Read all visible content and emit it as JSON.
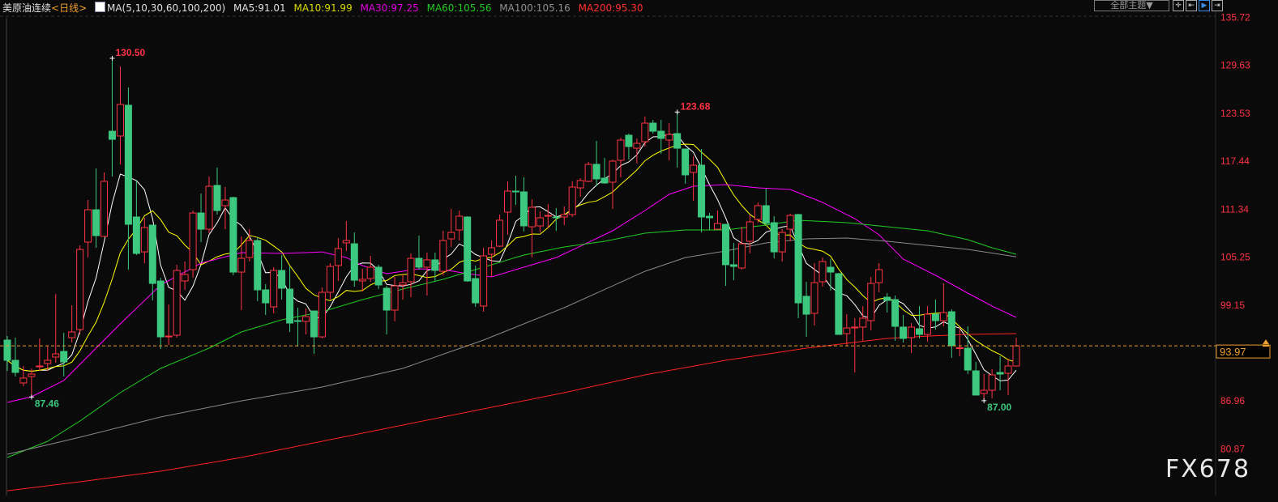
{
  "header": {
    "title": "美原油连续",
    "period": "<日线>",
    "indicator": "MA(5,10,30,60,100,200)",
    "ma5": "MA5:91.01",
    "ma10": "MA10:91.99",
    "ma30": "MA30:97.25",
    "ma60": "MA60:105.56",
    "ma100": "MA100:105.16",
    "ma200": "MA200:95.30"
  },
  "toolbar": {
    "theme": "全部主题▼",
    "icons": [
      "crosshair-icon",
      "range-icon",
      "play-icon",
      "move-right-icon"
    ]
  },
  "watermark": "FX678",
  "colors": {
    "up": "#ff3344",
    "down": "#3cc87e",
    "ma5": "#ffffff",
    "ma10": "#ffff00",
    "ma30": "#ff00ff",
    "ma60": "#22cc22",
    "ma100": "#8a8a8a",
    "ma200": "#ff2222",
    "last": "#f0a030"
  },
  "chart_data": {
    "type": "candlestick",
    "title": "美原油连续 <日线>",
    "ylim": [
      74.6,
      137.9
    ],
    "y_ticks": [
      "135.72",
      "129.63",
      "123.53",
      "117.44",
      "111.34",
      "105.25",
      "99.15",
      "86.96",
      "80.87"
    ],
    "last_price": "93.97",
    "annotations": [
      {
        "label": "130.50",
        "index": 14,
        "price": 130.5,
        "kind": "high"
      },
      {
        "label": "87.46",
        "index": 4,
        "price": 87.46,
        "kind": "low"
      },
      {
        "label": "123.68",
        "index": 84,
        "price": 123.68,
        "kind": "high"
      },
      {
        "label": "87.00",
        "index": 122,
        "price": 87.0,
        "kind": "low"
      }
    ],
    "ohlc_fields": [
      "open",
      "high",
      "low",
      "close"
    ],
    "candles": [
      [
        94.7,
        95.21,
        90.79,
        92.13
      ],
      [
        92.13,
        95.01,
        90.07,
        90.59
      ],
      [
        89.25,
        91.41,
        88.84,
        89.87
      ],
      [
        90.07,
        91.1,
        87.46,
        90.38
      ],
      [
        91.31,
        94.91,
        90.79,
        91.41
      ],
      [
        91.72,
        93.98,
        90.79,
        92.13
      ],
      [
        92.54,
        100.56,
        91.82,
        92.95
      ],
      [
        93.26,
        95.63,
        90.07,
        91.92
      ],
      [
        95.01,
        99.12,
        94.39,
        95.73
      ],
      [
        96.04,
        106.74,
        95.42,
        106.22
      ],
      [
        107.15,
        112.5,
        105.19,
        111.26
      ],
      [
        111.26,
        116.51,
        106.43,
        107.97
      ],
      [
        107.87,
        116.0,
        107.87,
        114.87
      ],
      [
        121.24,
        130.5,
        115.48,
        120.21
      ],
      [
        120.63,
        129.47,
        117.03,
        124.64
      ],
      [
        124.54,
        126.8,
        103.65,
        109.41
      ],
      [
        110.34,
        114.97,
        105.5,
        105.71
      ],
      [
        105.91,
        110.24,
        104.47,
        109.0
      ],
      [
        109.31,
        109.31,
        99.74,
        101.9
      ],
      [
        102.21,
        102.62,
        93.57,
        95.11
      ],
      [
        95.11,
        99.23,
        94.08,
        95.21
      ],
      [
        95.32,
        104.27,
        95.01,
        103.55
      ],
      [
        102.21,
        104.68,
        101.08,
        103.03
      ],
      [
        103.65,
        111.16,
        102.62,
        110.85
      ],
      [
        110.85,
        113.32,
        107.15,
        108.79
      ],
      [
        108.79,
        115.48,
        108.28,
        114.25
      ],
      [
        114.35,
        116.61,
        110.65,
        111.16
      ],
      [
        111.78,
        114.15,
        108.79,
        112.5
      ],
      [
        112.81,
        112.91,
        102.93,
        103.34
      ],
      [
        103.34,
        107.87,
        98.51,
        105.09
      ],
      [
        105.19,
        108.79,
        104.68,
        107.35
      ],
      [
        107.35,
        107.77,
        99.64,
        101.08
      ],
      [
        101.08,
        101.8,
        97.89,
        99.43
      ],
      [
        98.92,
        103.96,
        98.1,
        103.55
      ],
      [
        103.55,
        105.5,
        99.84,
        101.29
      ],
      [
        101.18,
        104.06,
        95.73,
        96.86
      ],
      [
        97.17,
        98.82,
        93.88,
        97.07
      ],
      [
        97.07,
        98.71,
        95.42,
        97.68
      ],
      [
        98.4,
        98.4,
        92.95,
        95.11
      ],
      [
        95.11,
        101.39,
        94.91,
        100.77
      ],
      [
        100.77,
        104.47,
        99.84,
        104.06
      ],
      [
        104.17,
        107.66,
        102.21,
        106.33
      ],
      [
        107.05,
        109.82,
        106.02,
        107.35
      ],
      [
        106.94,
        108.38,
        101.49,
        102.31
      ],
      [
        102.21,
        103.75,
        100.87,
        102.42
      ],
      [
        102.52,
        105.4,
        102.11,
        103.96
      ],
      [
        103.96,
        104.27,
        101.18,
        101.7
      ],
      [
        101.29,
        101.59,
        95.42,
        98.51
      ],
      [
        98.51,
        102.73,
        97.07,
        101.59
      ],
      [
        101.7,
        103.03,
        99.84,
        102.0
      ],
      [
        102.11,
        105.71,
        100.15,
        105.09
      ],
      [
        105.09,
        107.97,
        103.65,
        103.96
      ],
      [
        103.96,
        105.81,
        100.36,
        104.89
      ],
      [
        104.89,
        105.81,
        102.21,
        103.55
      ],
      [
        103.44,
        108.59,
        102.93,
        107.35
      ],
      [
        107.56,
        111.37,
        106.53,
        108.38
      ],
      [
        108.69,
        111.16,
        107.35,
        110.44
      ],
      [
        110.34,
        110.44,
        102.11,
        102.21
      ],
      [
        102.52,
        104.17,
        98.92,
        99.43
      ],
      [
        99.02,
        106.43,
        98.3,
        105.4
      ],
      [
        105.61,
        107.35,
        102.73,
        106.43
      ],
      [
        106.63,
        110.65,
        106.53,
        109.93
      ],
      [
        110.96,
        114.87,
        108.08,
        113.63
      ],
      [
        113.63,
        115.59,
        111.88,
        113.53
      ],
      [
        113.53,
        115.38,
        108.49,
        109.21
      ],
      [
        109.1,
        112.6,
        105.19,
        111.57
      ],
      [
        109.21,
        111.06,
        108.38,
        110.24
      ],
      [
        110.44,
        111.98,
        108.9,
        110.54
      ],
      [
        110.34,
        111.47,
        108.59,
        110.24
      ],
      [
        110.34,
        111.68,
        109.31,
        110.65
      ],
      [
        110.65,
        114.87,
        110.34,
        114.15
      ],
      [
        114.04,
        115.28,
        112.91,
        114.97
      ],
      [
        114.87,
        117.33,
        114.76,
        117.03
      ],
      [
        117.03,
        120.01,
        114.25,
        115.18
      ],
      [
        115.28,
        117.85,
        114.56,
        114.66
      ],
      [
        114.76,
        117.64,
        111.37,
        117.44
      ],
      [
        117.54,
        120.42,
        115.38,
        120.11
      ],
      [
        120.73,
        120.94,
        117.64,
        119.29
      ],
      [
        119.08,
        120.32,
        117.13,
        119.7
      ],
      [
        119.91,
        123.1,
        119.29,
        122.27
      ],
      [
        122.27,
        122.68,
        120.94,
        121.24
      ],
      [
        121.24,
        122.68,
        118.36,
        120.32
      ],
      [
        120.11,
        122.27,
        117.54,
        120.83
      ],
      [
        120.94,
        123.68,
        116.61,
        119.08
      ],
      [
        118.98,
        118.98,
        114.56,
        115.69
      ],
      [
        116.0,
        118.05,
        112.39,
        116.92
      ],
      [
        116.92,
        118.98,
        108.38,
        110.34
      ],
      [
        110.44,
        110.85,
        108.69,
        110.24
      ],
      [
        108.79,
        111.16,
        108.79,
        109.52
      ],
      [
        109.41,
        109.41,
        101.59,
        104.27
      ],
      [
        104.27,
        107.05,
        102.31,
        104.06
      ],
      [
        103.86,
        109.1,
        103.65,
        106.94
      ],
      [
        107.25,
        110.65,
        105.71,
        109.72
      ],
      [
        110.03,
        112.19,
        109.62,
        111.78
      ],
      [
        111.78,
        113.94,
        109.41,
        109.52
      ],
      [
        109.62,
        110.44,
        105.09,
        105.91
      ],
      [
        105.91,
        108.79,
        104.68,
        108.38
      ],
      [
        108.79,
        110.75,
        107.25,
        110.54
      ],
      [
        110.65,
        110.75,
        97.48,
        99.43
      ],
      [
        100.26,
        102.11,
        95.11,
        97.99
      ],
      [
        98.1,
        104.47,
        96.55,
        102.0
      ],
      [
        102.11,
        105.19,
        101.49,
        104.68
      ],
      [
        103.96,
        104.99,
        100.98,
        103.34
      ],
      [
        103.14,
        103.24,
        95.42,
        95.42
      ],
      [
        95.52,
        97.99,
        93.98,
        96.24
      ],
      [
        96.24,
        97.48,
        90.58,
        96.35
      ],
      [
        96.35,
        99.02,
        94.6,
        97.48
      ],
      [
        97.17,
        102.73,
        95.94,
        101.9
      ],
      [
        102.0,
        104.47,
        100.77,
        103.65
      ],
      [
        100.15,
        100.67,
        98.2,
        99.74
      ],
      [
        99.84,
        100.36,
        94.6,
        96.45
      ],
      [
        96.35,
        97.89,
        94.39,
        94.91
      ],
      [
        95.01,
        96.86,
        93.05,
        96.35
      ],
      [
        96.14,
        99.02,
        94.91,
        95.42
      ],
      [
        95.42,
        99.02,
        94.49,
        97.99
      ],
      [
        97.99,
        99.84,
        96.04,
        97.17
      ],
      [
        97.17,
        101.9,
        96.45,
        98.2
      ],
      [
        98.3,
        98.61,
        92.44,
        93.98
      ],
      [
        93.67,
        96.24,
        92.64,
        93.72
      ],
      [
        93.67,
        96.45,
        90.38,
        90.89
      ],
      [
        90.79,
        91.92,
        87.71,
        87.71
      ],
      [
        87.91,
        90.38,
        87.0,
        88.32
      ],
      [
        88.32,
        91.0,
        87.29,
        90.28
      ],
      [
        90.58,
        92.64,
        88.32,
        90.38
      ],
      [
        90.48,
        92.33,
        87.71,
        91.41
      ],
      [
        91.41,
        95.01,
        91.31,
        93.97
      ]
    ],
    "moving_averages": [
      {
        "name": "MA5",
        "period": 5,
        "computed": true
      },
      {
        "name": "MA10",
        "period": 10,
        "computed": true
      },
      {
        "name": "MA30",
        "points": [
          [
            1,
            86.78
          ],
          [
            4,
            87.5
          ],
          [
            8,
            89.56
          ],
          [
            13,
            94.7
          ],
          [
            15,
            96.76
          ],
          [
            20,
            101.7
          ],
          [
            25,
            104.47
          ],
          [
            30,
            105.81
          ],
          [
            35,
            105.71
          ],
          [
            38,
            105.81
          ],
          [
            40,
            105.91
          ],
          [
            43,
            105.19
          ],
          [
            45,
            104.17
          ],
          [
            48,
            103.14
          ],
          [
            52,
            103.75
          ],
          [
            55,
            103.65
          ],
          [
            58,
            103.14
          ],
          [
            61,
            102.73
          ],
          [
            65,
            103.96
          ],
          [
            69,
            105.19
          ],
          [
            72,
            106.63
          ],
          [
            76,
            108.59
          ],
          [
            80,
            111.16
          ],
          [
            83,
            113.22
          ],
          [
            86,
            114.25
          ],
          [
            90,
            114.45
          ],
          [
            94,
            114.04
          ],
          [
            98,
            113.84
          ],
          [
            102,
            112.19
          ],
          [
            106,
            110.13
          ],
          [
            109,
            108.08
          ],
          [
            112,
            104.99
          ],
          [
            116,
            102.93
          ],
          [
            120,
            100.67
          ],
          [
            123,
            99.02
          ],
          [
            126,
            97.58
          ]
        ]
      },
      {
        "name": "MA60",
        "points": [
          [
            1,
            79.78
          ],
          [
            6,
            81.84
          ],
          [
            10,
            84.41
          ],
          [
            15,
            88.01
          ],
          [
            20,
            91.1
          ],
          [
            26,
            93.67
          ],
          [
            30,
            95.73
          ],
          [
            35,
            97.27
          ],
          [
            40,
            98.3
          ],
          [
            45,
            99.84
          ],
          [
            50,
            101.18
          ],
          [
            55,
            102.42
          ],
          [
            60,
            103.96
          ],
          [
            65,
            105.5
          ],
          [
            70,
            106.53
          ],
          [
            75,
            107.25
          ],
          [
            80,
            108.28
          ],
          [
            85,
            108.69
          ],
          [
            90,
            108.69
          ],
          [
            95,
            109.31
          ],
          [
            99,
            109.93
          ],
          [
            105,
            109.62
          ],
          [
            110,
            109.1
          ],
          [
            115,
            108.59
          ],
          [
            120,
            107.46
          ],
          [
            123,
            106.43
          ],
          [
            126,
            105.61
          ]
        ]
      },
      {
        "name": "MA100",
        "points": [
          [
            1,
            80.19
          ],
          [
            10,
            82.36
          ],
          [
            20,
            84.93
          ],
          [
            30,
            86.98
          ],
          [
            40,
            88.73
          ],
          [
            50,
            91.1
          ],
          [
            60,
            94.7
          ],
          [
            70,
            98.82
          ],
          [
            80,
            103.44
          ],
          [
            85,
            105.19
          ],
          [
            90,
            106.02
          ],
          [
            95,
            107.05
          ],
          [
            100,
            107.56
          ],
          [
            105,
            107.66
          ],
          [
            110,
            107.25
          ],
          [
            115,
            106.74
          ],
          [
            120,
            106.22
          ],
          [
            126,
            105.29
          ]
        ]
      },
      {
        "name": "MA200",
        "points": [
          [
            1,
            75.56
          ],
          [
            10,
            76.7
          ],
          [
            20,
            78.03
          ],
          [
            30,
            79.78
          ],
          [
            40,
            81.84
          ],
          [
            50,
            83.9
          ],
          [
            60,
            85.96
          ],
          [
            70,
            88.01
          ],
          [
            80,
            90.28
          ],
          [
            90,
            92.13
          ],
          [
            100,
            93.67
          ],
          [
            105,
            94.29
          ],
          [
            110,
            94.91
          ],
          [
            115,
            95.21
          ],
          [
            120,
            95.42
          ],
          [
            126,
            95.52
          ]
        ]
      }
    ]
  }
}
